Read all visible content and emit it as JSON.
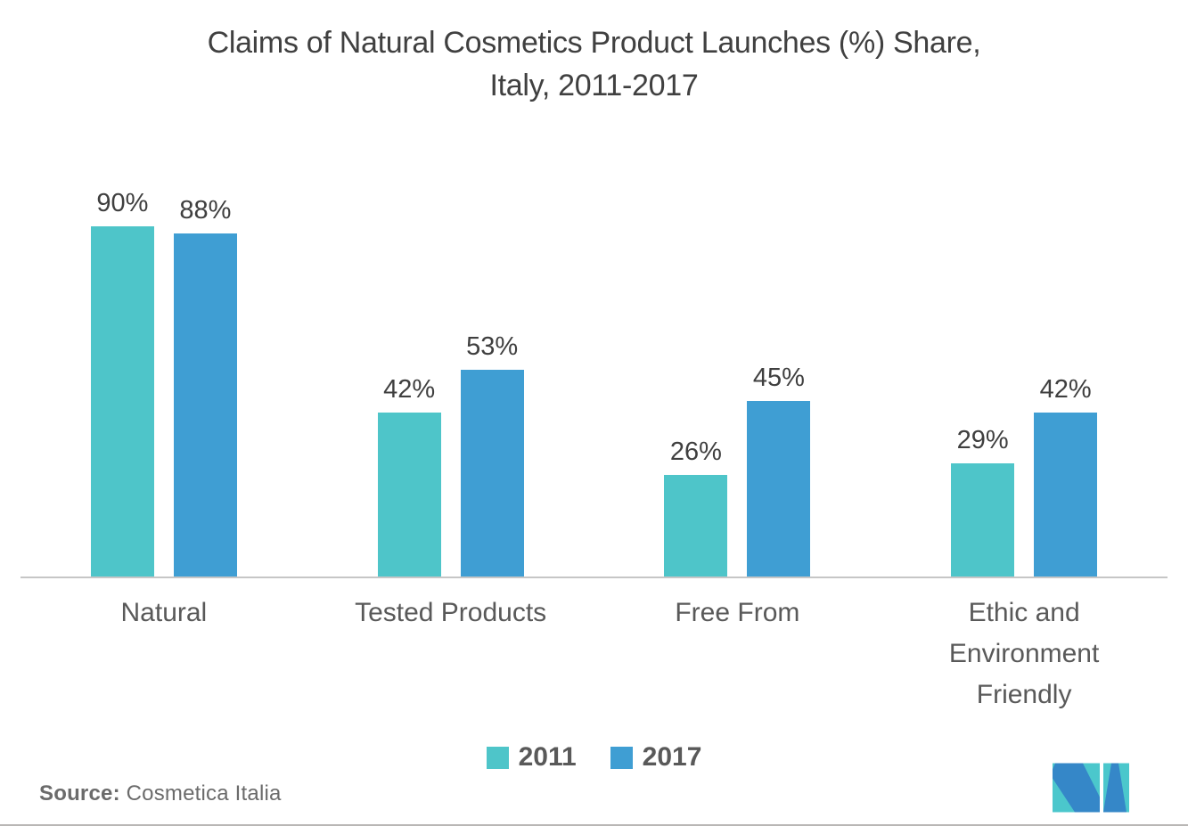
{
  "chart_data": {
    "type": "bar",
    "title": "Claims of Natural Cosmetics Product Launches (%) Share, Italy, 2011-2017",
    "title_lines": [
      "Claims of Natural Cosmetics Product Launches (%) Share,",
      "Italy, 2011-2017"
    ],
    "categories": [
      "Natural",
      "Tested Products",
      "Free From",
      "Ethic and Environment Friendly"
    ],
    "series": [
      {
        "name": "2011",
        "color": "#4ec5c9",
        "values": [
          90,
          42,
          26,
          29
        ]
      },
      {
        "name": "2017",
        "color": "#3f9ed3",
        "values": [
          88,
          53,
          45,
          42
        ]
      }
    ],
    "value_suffix": "%",
    "ylim": [
      0,
      100
    ],
    "grid": false,
    "y_axis_visible": false,
    "legend_position": "bottom",
    "xlabel": "",
    "ylabel": ""
  },
  "source": {
    "label": "Source:",
    "text": "Cosmetica Italia"
  },
  "logo": {
    "name": "mordor-intelligence-logo",
    "teal": "#4bc7cc",
    "blue": "#3587c8"
  },
  "style": {
    "title_color": "#404040",
    "label_color": "#3f3f3f",
    "category_color": "#595959",
    "legend_color": "#595959",
    "source_color": "#6b6b6b",
    "axis_color": "#c6c6c6"
  }
}
